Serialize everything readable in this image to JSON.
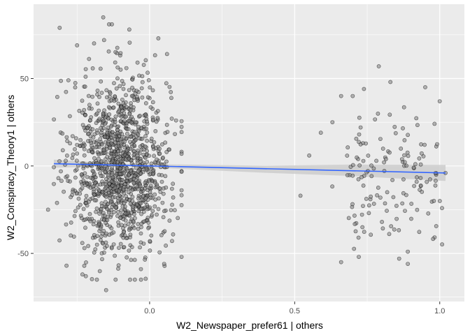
{
  "chart_data": {
    "type": "scatter",
    "xlabel": "W2_Newspaper_prefer61 | others",
    "ylabel": "W2_Conspiracy_Theory1 | others",
    "xlim": [
      -0.4,
      1.085
    ],
    "ylim": [
      -77.5,
      92.5
    ],
    "x_ticks": [
      0.0,
      0.5,
      1.0
    ],
    "x_tick_labels": [
      "0.0",
      "0.5",
      "1.0"
    ],
    "y_ticks": [
      -50,
      0,
      50
    ],
    "y_tick_labels": [
      "-50",
      "0",
      "50"
    ],
    "grid": true,
    "legend": "none",
    "colors": {
      "panel_background": "#ebebeb",
      "grid_major": "#ffffff",
      "point_fill": "#808080",
      "point_stroke": "#000000",
      "fit_line": "#3366ff",
      "ci_band": "#cccccc"
    },
    "highlighted_points": [
      {
        "x": -0.31,
        "y": 79
      },
      {
        "x": -0.28,
        "y": 49
      },
      {
        "x": -0.25,
        "y": 69
      },
      {
        "x": -0.16,
        "y": 85
      },
      {
        "x": -0.14,
        "y": 81
      },
      {
        "x": -0.13,
        "y": 81
      },
      {
        "x": -0.07,
        "y": 78
      },
      {
        "x": 0.03,
        "y": 73
      },
      {
        "x": 0.06,
        "y": 64
      },
      {
        "x": -0.35,
        "y": -25
      },
      {
        "x": -0.22,
        "y": -63
      },
      {
        "x": -0.15,
        "y": -71
      },
      {
        "x": -0.03,
        "y": -59
      },
      {
        "x": 0.05,
        "y": -56
      },
      {
        "x": 0.11,
        "y": -52
      },
      {
        "x": 0.52,
        "y": -17
      },
      {
        "x": 0.55,
        "y": 6
      },
      {
        "x": 0.59,
        "y": 19
      },
      {
        "x": 0.63,
        "y": 25
      },
      {
        "x": 0.66,
        "y": 40
      },
      {
        "x": 0.7,
        "y": 40
      },
      {
        "x": 0.66,
        "y": -55
      },
      {
        "x": 0.72,
        "y": -41
      },
      {
        "x": 0.79,
        "y": 57
      },
      {
        "x": 0.83,
        "y": 48
      },
      {
        "x": 0.95,
        "y": 45
      },
      {
        "x": 1.0,
        "y": 37
      },
      {
        "x": 0.86,
        "y": -53
      },
      {
        "x": 0.89,
        "y": -56
      },
      {
        "x": 0.89,
        "y": -49
      },
      {
        "x": 1.02,
        "y": -4
      },
      {
        "x": 0.98,
        "y": -20
      }
    ],
    "fit_line": {
      "x0": -0.33,
      "y0": 1.3,
      "x1": 1.02,
      "y1": -4.0
    },
    "ci_band": [
      {
        "x": -0.33,
        "lower": -1.0,
        "upper": 3.6
      },
      {
        "x": -0.1,
        "lower": -0.1,
        "upper": 1.3
      },
      {
        "x": 0.4,
        "lower": -3.9,
        "upper": 0.1
      },
      {
        "x": 0.7,
        "lower": -5.8,
        "upper": 0.8
      },
      {
        "x": 1.02,
        "lower": -8.6,
        "upper": 0.6
      }
    ]
  }
}
